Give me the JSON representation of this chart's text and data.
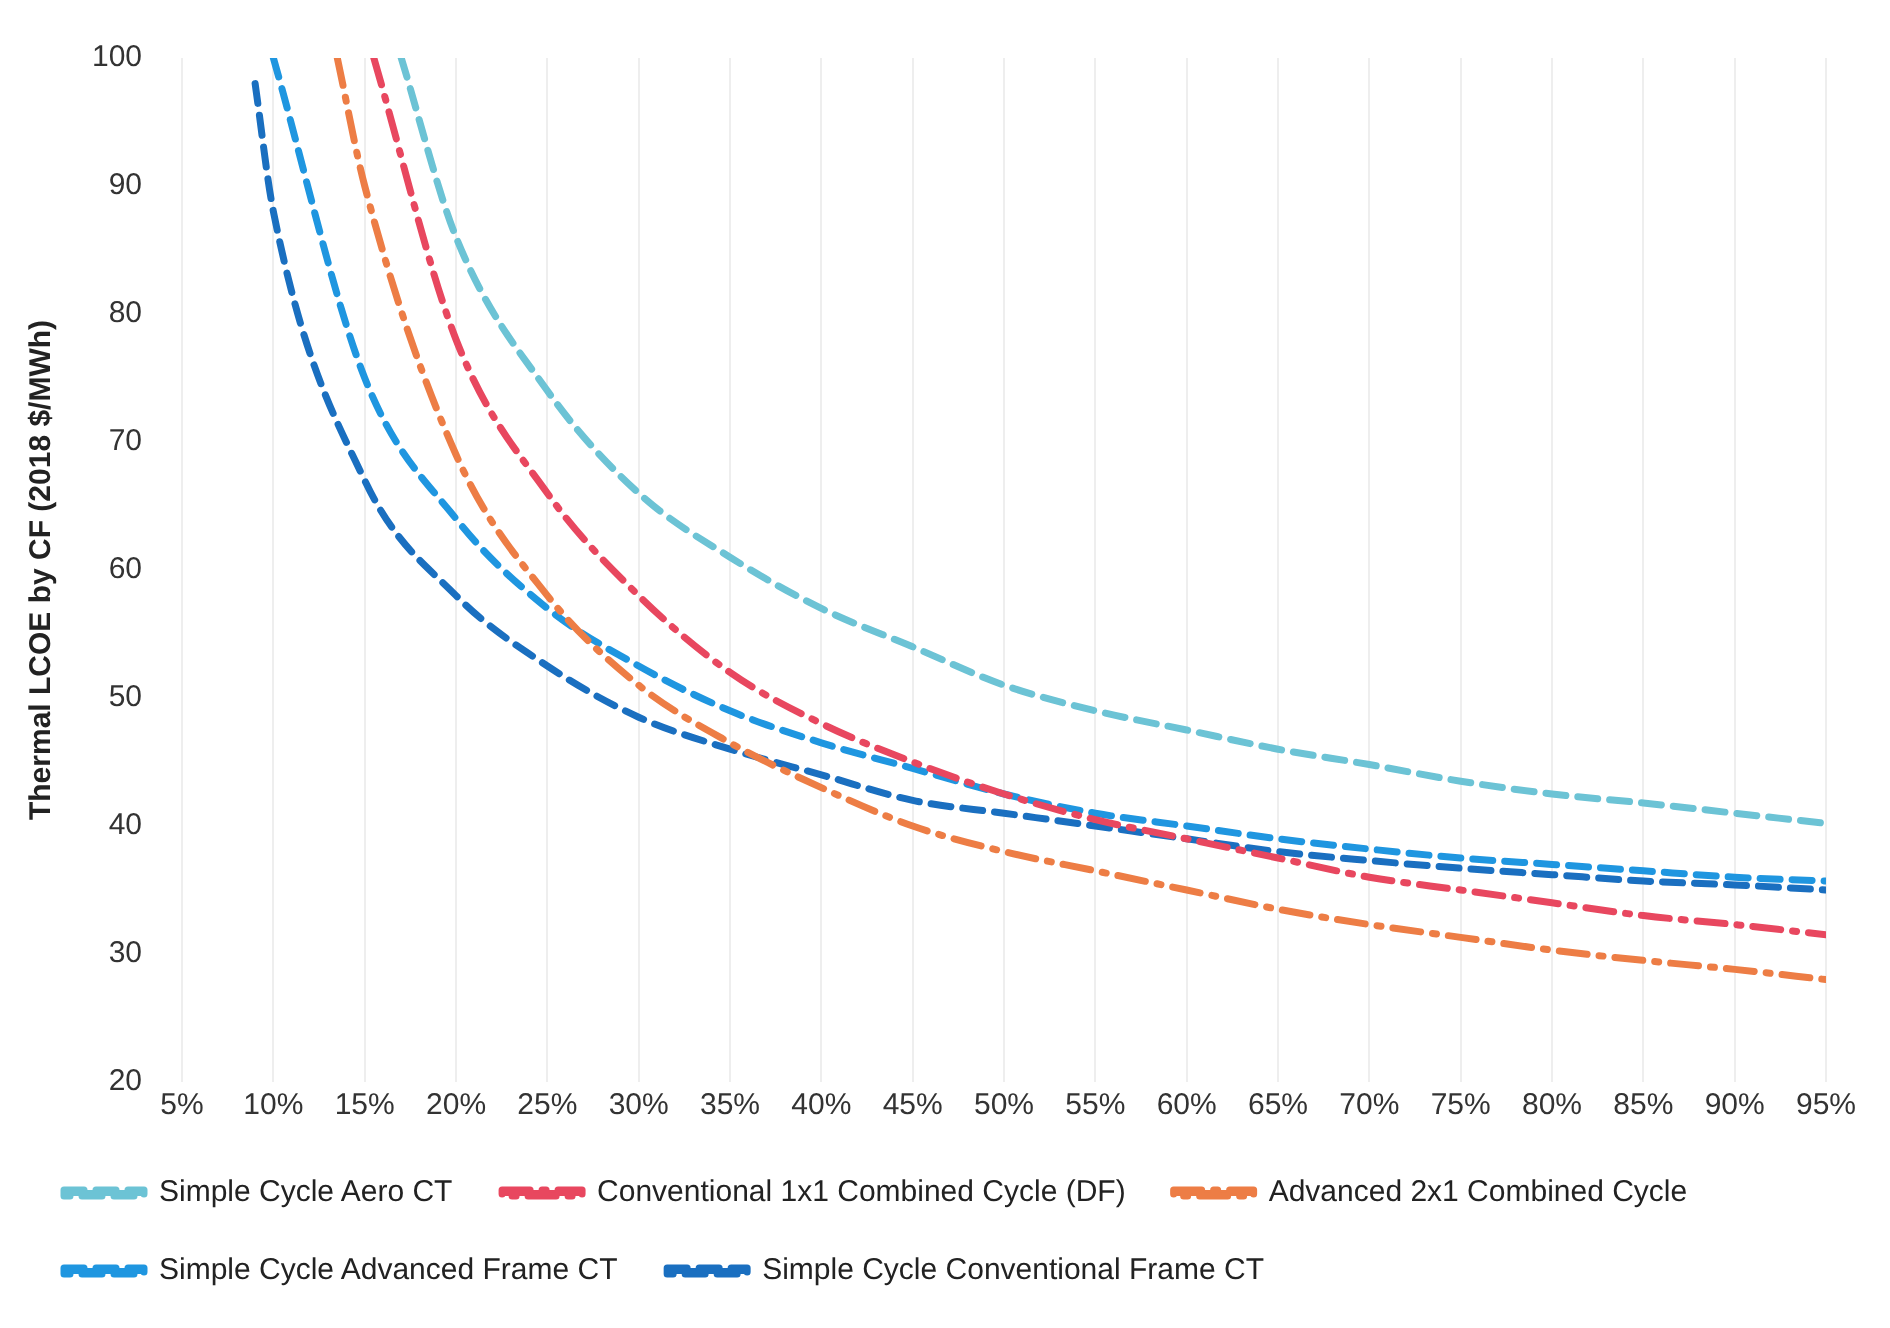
{
  "chart_data": {
    "type": "line",
    "ylabel": "Thermal LCOE by CF (2018 $/MWh)",
    "xlim": [
      5,
      95
    ],
    "xticks": [
      {
        "value": 5,
        "label": "5%"
      },
      {
        "value": 10,
        "label": "10%"
      },
      {
        "value": 15,
        "label": "15%"
      },
      {
        "value": 20,
        "label": "20%"
      },
      {
        "value": 25,
        "label": "25%"
      },
      {
        "value": 30,
        "label": "30%"
      },
      {
        "value": 35,
        "label": "35%"
      },
      {
        "value": 40,
        "label": "40%"
      },
      {
        "value": 45,
        "label": "45%"
      },
      {
        "value": 50,
        "label": "50%"
      },
      {
        "value": 55,
        "label": "55%"
      },
      {
        "value": 60,
        "label": "60%"
      },
      {
        "value": 65,
        "label": "65%"
      },
      {
        "value": 70,
        "label": "70%"
      },
      {
        "value": 75,
        "label": "75%"
      },
      {
        "value": 80,
        "label": "80%"
      },
      {
        "value": 85,
        "label": "85%"
      },
      {
        "value": 90,
        "label": "90%"
      },
      {
        "value": 95,
        "label": "95%"
      }
    ],
    "ylim": [
      20,
      100
    ],
    "yticks": [
      20,
      30,
      40,
      50,
      60,
      70,
      80,
      90,
      100
    ],
    "grid": "x",
    "legend": "bottom",
    "marker": "none",
    "series": [
      {
        "name": "Simple Cycle Aero CT",
        "color": "#6cc3d5",
        "line_style": "dashed",
        "x": [
          17,
          20,
          25,
          30,
          35,
          40,
          45,
          50,
          55,
          60,
          65,
          70,
          75,
          80,
          85,
          90,
          95
        ],
        "values": [
          100,
          86,
          74,
          66,
          61,
          57,
          54,
          51,
          49,
          47.5,
          46,
          44.8,
          43.5,
          42.5,
          41.8,
          41,
          40.2
        ]
      },
      {
        "name": "Conventional 1x1 Combined Cycle (DF)",
        "color": "#e8475f",
        "line_style": "dashdot",
        "x": [
          15.5,
          20,
          25,
          30,
          35,
          40,
          45,
          50,
          55,
          60,
          65,
          70,
          75,
          80,
          85,
          90,
          95
        ],
        "values": [
          100,
          78,
          66,
          58,
          52,
          48,
          45,
          42.5,
          40.5,
          39,
          37.5,
          36,
          35,
          34,
          33,
          32.3,
          31.5
        ]
      },
      {
        "name": "Advanced 2x1 Combined Cycle",
        "color": "#ed7d45",
        "line_style": "dashdot",
        "x": [
          13.5,
          15,
          20,
          25,
          30,
          35,
          40,
          45,
          50,
          55,
          60,
          65,
          70,
          75,
          80,
          85,
          90,
          95
        ],
        "values": [
          100,
          90,
          69,
          58,
          51,
          46.5,
          43,
          40,
          38,
          36.5,
          35,
          33.5,
          32.3,
          31.3,
          30.3,
          29.5,
          28.8,
          28
        ]
      },
      {
        "name": "Simple Cycle Advanced Frame CT",
        "color": "#1f96e0",
        "line_style": "dashed",
        "x": [
          10,
          15,
          20,
          25,
          30,
          35,
          40,
          45,
          50,
          55,
          60,
          65,
          70,
          75,
          80,
          85,
          90,
          95
        ],
        "values": [
          100,
          75,
          64,
          57,
          52.5,
          49,
          46.5,
          44.5,
          42.5,
          41,
          40,
          39,
          38.2,
          37.5,
          37,
          36.5,
          36,
          35.7
        ]
      },
      {
        "name": "Simple Cycle Conventional Frame CT",
        "color": "#1a6fc0",
        "line_style": "dashed",
        "x": [
          9,
          10,
          15,
          20,
          25,
          30,
          35,
          40,
          45,
          50,
          55,
          60,
          65,
          70,
          75,
          80,
          85,
          90,
          95
        ],
        "values": [
          98,
          88,
          67,
          58,
          52.5,
          48.5,
          46,
          44,
          42,
          41,
          40,
          39,
          38,
          37.3,
          36.7,
          36.2,
          35.7,
          35.4,
          35
        ]
      }
    ]
  }
}
